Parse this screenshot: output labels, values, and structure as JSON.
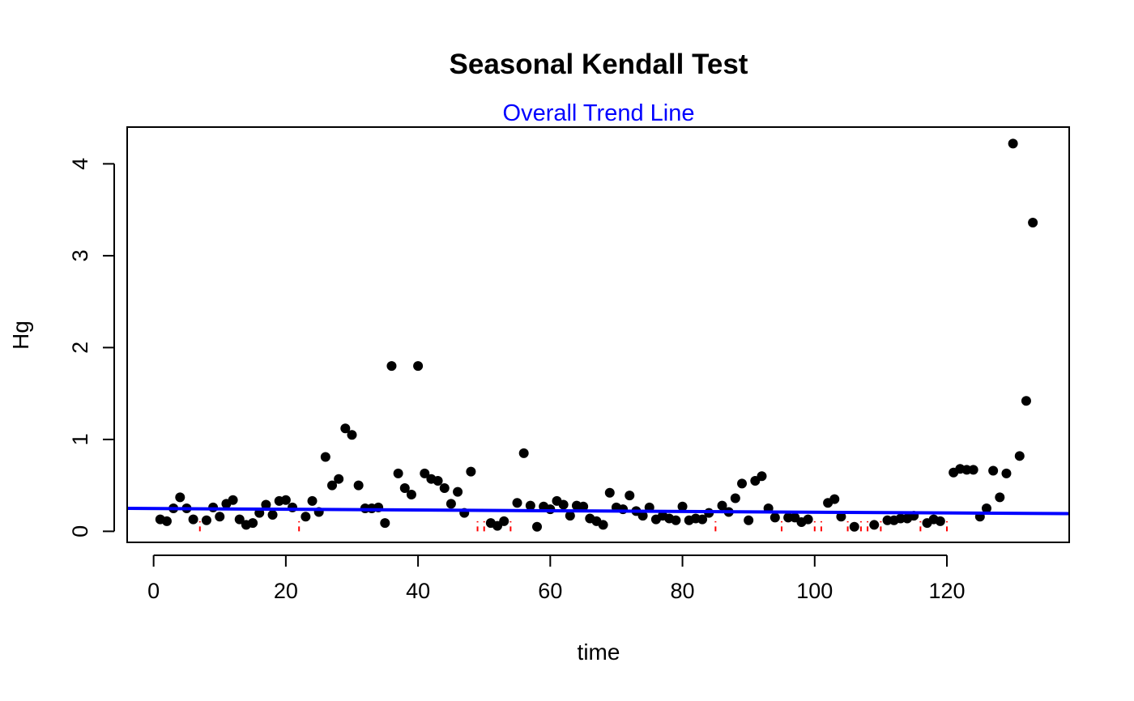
{
  "chart_data": {
    "type": "scatter",
    "title": "Seasonal Kendall Test",
    "subtitle": "Overall Trend Line",
    "xlabel": "time",
    "ylabel": "Hg",
    "xlim": [
      -4,
      138.5
    ],
    "ylim": [
      -0.12,
      4.4
    ],
    "x_ticks": [
      0,
      20,
      40,
      60,
      80,
      100,
      120
    ],
    "y_ticks": [
      0,
      1,
      2,
      3,
      4
    ],
    "grid": false,
    "legend": "none",
    "colors": {
      "points": "#000000",
      "trend": "#0000ff",
      "censored": "#ff0000",
      "subtitle": "#0000ff"
    },
    "trend_line": {
      "intercept": 0.248,
      "slope": -0.0004
    },
    "censored_x": [
      7,
      22,
      49,
      50,
      54,
      85,
      95,
      100,
      101,
      105,
      107,
      108,
      110,
      116,
      120
    ],
    "censored_top": 0.11,
    "points": {
      "x": [
        1,
        2,
        3,
        4,
        5,
        6,
        8,
        9,
        10,
        11,
        12,
        13,
        14,
        15,
        16,
        17,
        18,
        19,
        20,
        21,
        23,
        24,
        25,
        26,
        27,
        28,
        29,
        30,
        31,
        32,
        33,
        34,
        35,
        36,
        37,
        38,
        39,
        40,
        41,
        42,
        43,
        44,
        45,
        46,
        47,
        48,
        51,
        52,
        53,
        55,
        56,
        57,
        58,
        59,
        60,
        61,
        62,
        63,
        64,
        65,
        66,
        67,
        68,
        69,
        70,
        71,
        72,
        73,
        74,
        75,
        76,
        77,
        78,
        79,
        80,
        81,
        82,
        83,
        84,
        86,
        87,
        88,
        89,
        90,
        91,
        92,
        93,
        94,
        96,
        97,
        98,
        99,
        102,
        103,
        104,
        106,
        109,
        111,
        112,
        113,
        114,
        115,
        117,
        118,
        119,
        121,
        122,
        123,
        124,
        125,
        126,
        127,
        128,
        129,
        130,
        131,
        132,
        133
      ],
      "y": [
        0.13,
        0.11,
        0.25,
        0.37,
        0.25,
        0.13,
        0.12,
        0.26,
        0.16,
        0.3,
        0.34,
        0.13,
        0.07,
        0.09,
        0.2,
        0.29,
        0.18,
        0.33,
        0.34,
        0.26,
        0.16,
        0.33,
        0.21,
        0.81,
        0.5,
        0.57,
        1.12,
        1.05,
        0.5,
        0.25,
        0.25,
        0.26,
        0.09,
        1.8,
        0.63,
        0.47,
        0.4,
        1.8,
        0.63,
        0.57,
        0.55,
        0.47,
        0.3,
        0.43,
        0.2,
        0.65,
        0.09,
        0.06,
        0.11,
        0.31,
        0.85,
        0.28,
        0.05,
        0.27,
        0.24,
        0.33,
        0.29,
        0.17,
        0.28,
        0.27,
        0.14,
        0.11,
        0.07,
        0.42,
        0.26,
        0.24,
        0.39,
        0.22,
        0.17,
        0.26,
        0.13,
        0.17,
        0.14,
        0.12,
        0.27,
        0.12,
        0.14,
        0.13,
        0.2,
        0.28,
        0.21,
        0.36,
        0.52,
        0.12,
        0.55,
        0.6,
        0.25,
        0.15,
        0.15,
        0.15,
        0.1,
        0.13,
        0.31,
        0.35,
        0.16,
        0.05,
        0.07,
        0.12,
        0.12,
        0.14,
        0.14,
        0.17,
        0.09,
        0.13,
        0.11,
        0.64,
        0.68,
        0.67,
        0.67,
        0.16,
        0.25,
        0.66,
        0.37,
        0.63,
        4.22,
        0.82,
        1.42,
        3.36
      ]
    }
  }
}
